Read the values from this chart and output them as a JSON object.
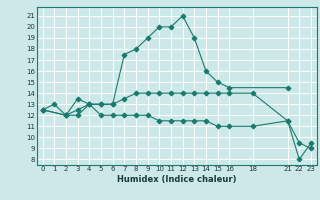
{
  "xlabel": "Humidex (Indice chaleur)",
  "bg_color": "#cce8e8",
  "grid_color": "#ffffff",
  "line_color": "#1a7a6e",
  "xlim": [
    -0.5,
    23.5
  ],
  "ylim": [
    7.5,
    21.8
  ],
  "xticks": [
    0,
    1,
    2,
    3,
    4,
    5,
    6,
    7,
    8,
    9,
    10,
    11,
    12,
    13,
    14,
    15,
    16,
    18,
    21,
    22,
    23
  ],
  "yticks": [
    8,
    9,
    10,
    11,
    12,
    13,
    14,
    15,
    16,
    17,
    18,
    19,
    20,
    21
  ],
  "line1_x": [
    0,
    1,
    2,
    3,
    4,
    5,
    6,
    7,
    8,
    9,
    10,
    11,
    12,
    13,
    14,
    15,
    16,
    21
  ],
  "line1_y": [
    12.5,
    13,
    12,
    13.5,
    13,
    13,
    13,
    17.5,
    18,
    19,
    20,
    20,
    21,
    19,
    16,
    15,
    14.5,
    14.5
  ],
  "line2_x": [
    0,
    2,
    3,
    4,
    5,
    6,
    7,
    8,
    9,
    10,
    11,
    12,
    13,
    14,
    15,
    16,
    18,
    21,
    22,
    23
  ],
  "line2_y": [
    12.5,
    12,
    12,
    13,
    13,
    13,
    13.5,
    14,
    14,
    14,
    14,
    14,
    14,
    14,
    14,
    14,
    14,
    11.5,
    9.5,
    9
  ],
  "line3_x": [
    0,
    2,
    3,
    4,
    5,
    6,
    7,
    8,
    9,
    10,
    11,
    12,
    13,
    14,
    15,
    16,
    18,
    21,
    22,
    23
  ],
  "line3_y": [
    12.5,
    12,
    12.5,
    13,
    12,
    12,
    12,
    12,
    12,
    11.5,
    11.5,
    11.5,
    11.5,
    11.5,
    11,
    11,
    11,
    11.5,
    8,
    9.5
  ]
}
